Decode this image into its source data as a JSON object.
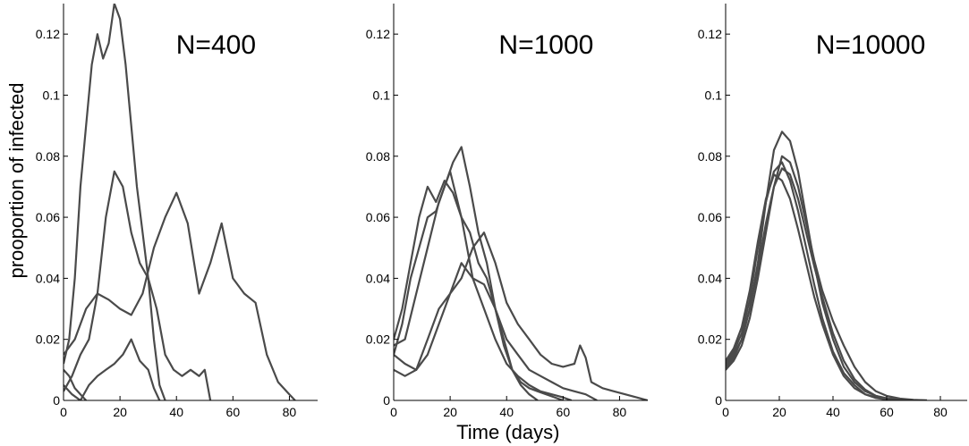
{
  "chart_data": [
    {
      "type": "line",
      "title": "N=400",
      "xlabel": "",
      "ylabel": "prooportion of infected",
      "xlim": [
        0,
        90
      ],
      "ylim": [
        0,
        0.13
      ],
      "xticks": [
        0,
        20,
        40,
        60,
        80
      ],
      "yticks": [
        0,
        0.02,
        0.04,
        0.06,
        0.08,
        0.1,
        0.12
      ],
      "ytick_labels": [
        "0",
        "0.02",
        "0.04",
        "0.06",
        "0.08",
        "0.1",
        "0.12"
      ],
      "grid": false,
      "series": [
        {
          "x": [
            0,
            2,
            4,
            6,
            8
          ],
          "y": [
            0.01,
            0.008,
            0.004,
            0.002,
            0
          ]
        },
        {
          "x": [
            0,
            2,
            4,
            6,
            8,
            10,
            12,
            14,
            16,
            18,
            20,
            22,
            24,
            26,
            28,
            30,
            32,
            34,
            36
          ],
          "y": [
            0.012,
            0.02,
            0.04,
            0.07,
            0.09,
            0.11,
            0.12,
            0.112,
            0.117,
            0.13,
            0.125,
            0.11,
            0.09,
            0.07,
            0.055,
            0.04,
            0.02,
            0.005,
            0
          ]
        },
        {
          "x": [
            0,
            3,
            6,
            9,
            12,
            15,
            18,
            21,
            24,
            27,
            30,
            33,
            36,
            39,
            42,
            45,
            48,
            50,
            52
          ],
          "y": [
            0.003,
            0.008,
            0.015,
            0.02,
            0.035,
            0.06,
            0.075,
            0.07,
            0.055,
            0.045,
            0.04,
            0.03,
            0.015,
            0.01,
            0.008,
            0.01,
            0.008,
            0.01,
            0
          ]
        },
        {
          "x": [
            0,
            4,
            8,
            12,
            16,
            20,
            24,
            28,
            32,
            36,
            40,
            44,
            48,
            52,
            56,
            60,
            64,
            68,
            72,
            76,
            80,
            82
          ],
          "y": [
            0.015,
            0.02,
            0.03,
            0.035,
            0.033,
            0.03,
            0.028,
            0.035,
            0.05,
            0.06,
            0.068,
            0.058,
            0.035,
            0.045,
            0.058,
            0.04,
            0.035,
            0.032,
            0.015,
            0.006,
            0.002,
            0
          ]
        },
        {
          "x": [
            0,
            3,
            6,
            9,
            12,
            15,
            18,
            21,
            24,
            27,
            30,
            32,
            34
          ],
          "y": [
            0.005,
            0.002,
            0,
            0.005,
            0.008,
            0.01,
            0.012,
            0.015,
            0.02,
            0.013,
            0.01,
            0.004,
            0
          ]
        }
      ]
    },
    {
      "type": "line",
      "title": "N=1000",
      "xlabel": "Time (days)",
      "ylabel": "",
      "xlim": [
        0,
        90
      ],
      "ylim": [
        0,
        0.13
      ],
      "xticks": [
        0,
        20,
        40,
        60,
        80
      ],
      "yticks": [
        0,
        0.02,
        0.04,
        0.06,
        0.08,
        0.1,
        0.12
      ],
      "ytick_labels": [
        "0",
        "0.02",
        "0.04",
        "0.06",
        "0.08",
        "0.1",
        "0.12"
      ],
      "grid": false,
      "series": [
        {
          "x": [
            0,
            3,
            6,
            9,
            12,
            15,
            18,
            21,
            24,
            27,
            30,
            33,
            36,
            39,
            42,
            45,
            48,
            51
          ],
          "y": [
            0.02,
            0.03,
            0.045,
            0.06,
            0.07,
            0.065,
            0.072,
            0.068,
            0.06,
            0.055,
            0.045,
            0.04,
            0.03,
            0.02,
            0.01,
            0.005,
            0.002,
            0
          ]
        },
        {
          "x": [
            0,
            3,
            6,
            9,
            12,
            15,
            18,
            21,
            24,
            27,
            30,
            33,
            36,
            39,
            42,
            45,
            48,
            51,
            54,
            57,
            60
          ],
          "y": [
            0.015,
            0.025,
            0.04,
            0.05,
            0.06,
            0.062,
            0.07,
            0.078,
            0.083,
            0.07,
            0.055,
            0.045,
            0.03,
            0.018,
            0.01,
            0.006,
            0.004,
            0.003,
            0.002,
            0.001,
            0
          ]
        },
        {
          "x": [
            0,
            4,
            8,
            12,
            16,
            20,
            24,
            28,
            32,
            36,
            40,
            44,
            48,
            52,
            56,
            60,
            64,
            66,
            68,
            70,
            74,
            78,
            82,
            86,
            90
          ],
          "y": [
            0.015,
            0.012,
            0.01,
            0.02,
            0.03,
            0.035,
            0.04,
            0.05,
            0.055,
            0.045,
            0.032,
            0.025,
            0.02,
            0.015,
            0.012,
            0.011,
            0.012,
            0.018,
            0.014,
            0.006,
            0.004,
            0.003,
            0.002,
            0.001,
            0
          ]
        },
        {
          "x": [
            0,
            4,
            8,
            12,
            16,
            20,
            24,
            28,
            32,
            36,
            40,
            44,
            48,
            52,
            56,
            60,
            64,
            68,
            72
          ],
          "y": [
            0.01,
            0.008,
            0.01,
            0.015,
            0.025,
            0.035,
            0.045,
            0.04,
            0.038,
            0.03,
            0.02,
            0.015,
            0.01,
            0.008,
            0.006,
            0.004,
            0.003,
            0.002,
            0
          ]
        },
        {
          "x": [
            0,
            4,
            8,
            12,
            16,
            20,
            24,
            28,
            32,
            36,
            40,
            44,
            48,
            52,
            56,
            60,
            63
          ],
          "y": [
            0.018,
            0.02,
            0.035,
            0.05,
            0.065,
            0.075,
            0.06,
            0.04,
            0.03,
            0.02,
            0.012,
            0.008,
            0.005,
            0.003,
            0.002,
            0.001,
            0
          ]
        }
      ]
    },
    {
      "type": "line",
      "title": "N=10000",
      "xlabel": "",
      "ylabel": "",
      "xlim": [
        0,
        90
      ],
      "ylim": [
        0,
        0.13
      ],
      "xticks": [
        0,
        20,
        40,
        60,
        80
      ],
      "yticks": [
        0,
        0.02,
        0.04,
        0.06,
        0.08,
        0.1,
        0.12
      ],
      "ytick_labels": [
        "0",
        "0.02",
        "0.04",
        "0.06",
        "0.08",
        "0.1",
        "0.12"
      ],
      "grid": false,
      "series": [
        {
          "x": [
            0,
            3,
            6,
            9,
            12,
            15,
            18,
            21,
            24,
            27,
            30,
            33,
            36,
            40,
            44,
            48,
            52,
            56,
            60,
            65,
            70,
            75
          ],
          "y": [
            0.01,
            0.014,
            0.02,
            0.03,
            0.045,
            0.065,
            0.082,
            0.088,
            0.085,
            0.075,
            0.06,
            0.045,
            0.032,
            0.02,
            0.011,
            0.006,
            0.003,
            0.0015,
            0.0007,
            0.0003,
            0.0001,
            0
          ]
        },
        {
          "x": [
            0,
            3,
            6,
            9,
            12,
            15,
            18,
            21,
            24,
            27,
            30,
            33,
            36,
            40,
            44,
            48,
            52,
            56,
            60,
            65,
            70
          ],
          "y": [
            0.012,
            0.016,
            0.022,
            0.033,
            0.05,
            0.065,
            0.075,
            0.078,
            0.072,
            0.062,
            0.05,
            0.038,
            0.027,
            0.016,
            0.009,
            0.005,
            0.002,
            0.001,
            0.0005,
            0.0002,
            0
          ]
        },
        {
          "x": [
            0,
            3,
            6,
            9,
            12,
            15,
            18,
            21,
            24,
            27,
            30,
            33,
            36,
            40,
            44,
            48,
            52,
            56,
            60,
            65,
            70,
            75
          ],
          "y": [
            0.01,
            0.013,
            0.018,
            0.027,
            0.04,
            0.055,
            0.07,
            0.08,
            0.078,
            0.07,
            0.058,
            0.046,
            0.036,
            0.026,
            0.018,
            0.011,
            0.006,
            0.003,
            0.0015,
            0.0006,
            0.0002,
            0
          ]
        },
        {
          "x": [
            0,
            3,
            6,
            9,
            12,
            15,
            18,
            21,
            24,
            27,
            30,
            33,
            36,
            40,
            44,
            48,
            52,
            56,
            60,
            65,
            70
          ],
          "y": [
            0.013,
            0.017,
            0.024,
            0.036,
            0.052,
            0.066,
            0.074,
            0.072,
            0.066,
            0.056,
            0.045,
            0.034,
            0.025,
            0.015,
            0.008,
            0.004,
            0.002,
            0.0008,
            0.0003,
            0.0001,
            0
          ]
        },
        {
          "x": [
            0,
            3,
            6,
            9,
            12,
            15,
            18,
            21,
            24,
            27,
            30,
            33,
            36,
            40,
            44,
            48,
            52,
            56,
            60,
            65,
            70
          ],
          "y": [
            0.011,
            0.015,
            0.02,
            0.03,
            0.043,
            0.058,
            0.07,
            0.076,
            0.074,
            0.066,
            0.055,
            0.044,
            0.034,
            0.022,
            0.013,
            0.007,
            0.0035,
            0.0015,
            0.0006,
            0.0002,
            0
          ]
        }
      ]
    }
  ]
}
